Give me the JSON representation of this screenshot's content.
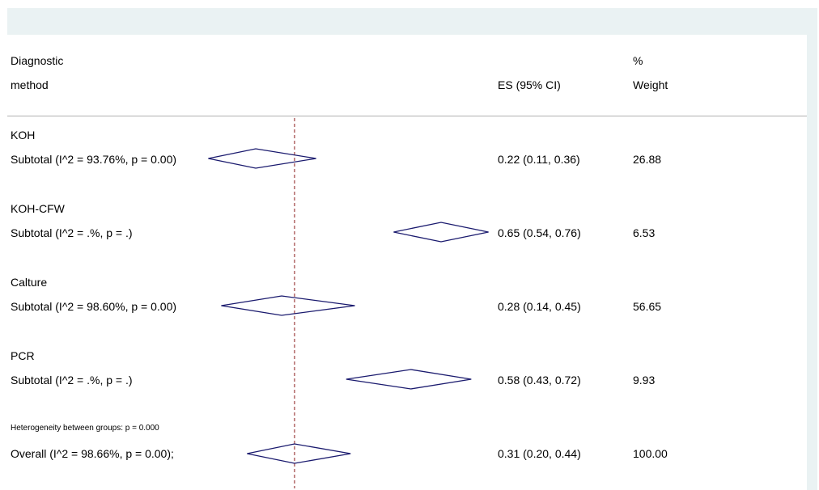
{
  "chart_data": {
    "type": "forest",
    "title": "",
    "xlabel": "",
    "ylabel": "",
    "headers": {
      "label_line1": "Diagnostic",
      "label_line2": "method",
      "es": "ES (95% CI)",
      "weight_line1": "%",
      "weight_line2": "Weight"
    },
    "reference_line": 0.31,
    "xlim": [
      -0.1,
      0.9
    ],
    "groups": [
      {
        "name": "KOH",
        "subtotal_label": "Subtotal  (I^2 = 93.76%, p = 0.00)",
        "es": 0.22,
        "lo": 0.11,
        "hi": 0.36,
        "ci_text": "0.22 (0.11, 0.36)",
        "weight": "26.88"
      },
      {
        "name": "KOH-CFW",
        "subtotal_label": "Subtotal  (I^2 = .%, p = .)",
        "es": 0.65,
        "lo": 0.54,
        "hi": 0.76,
        "ci_text": "0.65 (0.54, 0.76)",
        "weight": "6.53"
      },
      {
        "name": "Calture",
        "subtotal_label": "Subtotal  (I^2 = 98.60%, p = 0.00)",
        "es": 0.28,
        "lo": 0.14,
        "hi": 0.45,
        "ci_text": "0.28 (0.14, 0.45)",
        "weight": "56.65"
      },
      {
        "name": "PCR",
        "subtotal_label": "Subtotal  (I^2 = .%, p = .)",
        "es": 0.58,
        "lo": 0.43,
        "hi": 0.72,
        "ci_text": "0.58 (0.43, 0.72)",
        "weight": "9.93"
      }
    ],
    "heterogeneity": "Heterogeneity between groups: p = 0.000",
    "overall": {
      "label": "Overall  (I^2 = 98.66%, p = 0.00);",
      "es": 0.31,
      "lo": 0.2,
      "hi": 0.44,
      "ci_text": "0.31 (0.20, 0.44)",
      "weight": "100.00"
    },
    "colors": {
      "diamond": "#1a1a6e",
      "reference": "#8b1a1a"
    }
  }
}
